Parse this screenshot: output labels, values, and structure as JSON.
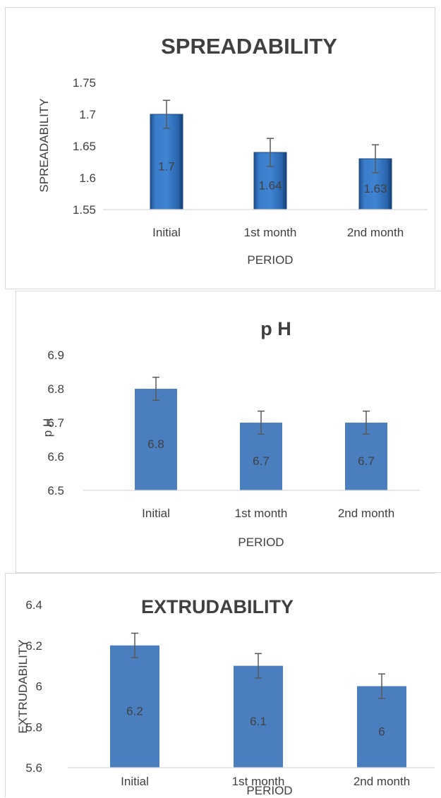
{
  "charts": [
    {
      "title": "SPREADABILITY",
      "xlabel": "PERIOD",
      "ylabel": "SPREADABILITY",
      "ytick_labels": [
        "1.55",
        "1.6",
        "1.65",
        "1.7",
        "1.75"
      ],
      "categories": [
        "Initial",
        "1st month",
        "2nd month"
      ],
      "data_labels": [
        "1.7",
        "1.64",
        "1.63"
      ]
    },
    {
      "title": "p H",
      "xlabel": "PERIOD",
      "ylabel": "p H",
      "ytick_labels": [
        "6.5",
        "6.6",
        "6.7",
        "6.8",
        "6.9"
      ],
      "categories": [
        "Initial",
        "1st month",
        "2nd month"
      ],
      "data_labels": [
        "6.8",
        "6.7",
        "6.7"
      ]
    },
    {
      "title": "EXTRUDABILITY",
      "xlabel": "PERIOD",
      "ylabel": "EXTRUDABILITY",
      "ytick_labels": [
        "5.6",
        "5.8",
        "6",
        "6.2",
        "6.4"
      ],
      "categories": [
        "Initial",
        "1st month",
        "2nd month"
      ],
      "data_labels": [
        "6.2",
        "6.1",
        "6"
      ]
    }
  ],
  "chart_data": [
    {
      "type": "bar",
      "title": "SPREADABILITY",
      "xlabel": "PERIOD",
      "ylabel": "SPREADABILITY",
      "categories": [
        "Initial",
        "1st month",
        "2nd month"
      ],
      "values": [
        1.7,
        1.64,
        1.63
      ],
      "error": [
        0.022,
        0.022,
        0.022
      ],
      "ylim": [
        1.55,
        1.75
      ],
      "yticks": [
        1.55,
        1.6,
        1.65,
        1.7,
        1.75
      ],
      "grid": false,
      "bar_color": "#2f6fb8",
      "style": "gradient-3d"
    },
    {
      "type": "bar",
      "title": "p H",
      "xlabel": "PERIOD",
      "ylabel": "p H",
      "categories": [
        "Initial",
        "1st month",
        "2nd month"
      ],
      "values": [
        6.8,
        6.7,
        6.7
      ],
      "error": [
        0.034,
        0.034,
        0.034
      ],
      "ylim": [
        6.5,
        6.9
      ],
      "yticks": [
        6.5,
        6.6,
        6.7,
        6.8,
        6.9
      ],
      "grid": false,
      "bar_color": "#4a7ebf"
    },
    {
      "type": "bar",
      "title": "EXTRUDABILITY",
      "xlabel": "PERIOD",
      "ylabel": "EXTRUDABILITY",
      "categories": [
        "Initial",
        "1st month",
        "2nd month"
      ],
      "values": [
        6.2,
        6.1,
        6.0
      ],
      "error": [
        0.06,
        0.06,
        0.06
      ],
      "ylim": [
        5.6,
        6.4
      ],
      "yticks": [
        5.6,
        5.8,
        6.0,
        6.2,
        6.4
      ],
      "grid": false,
      "bar_color": "#4a7ebf"
    }
  ]
}
